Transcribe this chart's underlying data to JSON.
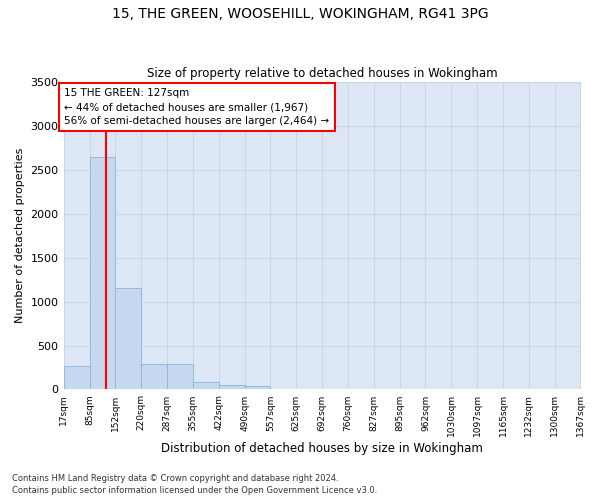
{
  "title": "15, THE GREEN, WOOSEHILL, WOKINGHAM, RG41 3PG",
  "subtitle": "Size of property relative to detached houses in Wokingham",
  "xlabel": "Distribution of detached houses by size in Wokingham",
  "ylabel": "Number of detached properties",
  "bar_color": "#c5d8f0",
  "bar_edge_color": "#8ab4d8",
  "grid_color": "#c8d4e8",
  "background_color": "#dce6f5",
  "annotation_text": "15 THE GREEN: 127sqm\n← 44% of detached houses are smaller (1,967)\n56% of semi-detached houses are larger (2,464) →",
  "red_line_x": 127,
  "footnote1": "Contains HM Land Registry data © Crown copyright and database right 2024.",
  "footnote2": "Contains public sector information licensed under the Open Government Licence v3.0.",
  "bin_edges": [
    17,
    85,
    152,
    220,
    287,
    355,
    422,
    490,
    557,
    625,
    692,
    760,
    827,
    895,
    962,
    1030,
    1097,
    1165,
    1232,
    1300,
    1367
  ],
  "bar_heights": [
    270,
    2650,
    1150,
    285,
    285,
    90,
    50,
    35,
    0,
    0,
    0,
    0,
    0,
    0,
    0,
    0,
    0,
    0,
    0,
    0
  ],
  "ylim": [
    0,
    3500
  ],
  "yticks": [
    0,
    500,
    1000,
    1500,
    2000,
    2500,
    3000,
    3500
  ]
}
